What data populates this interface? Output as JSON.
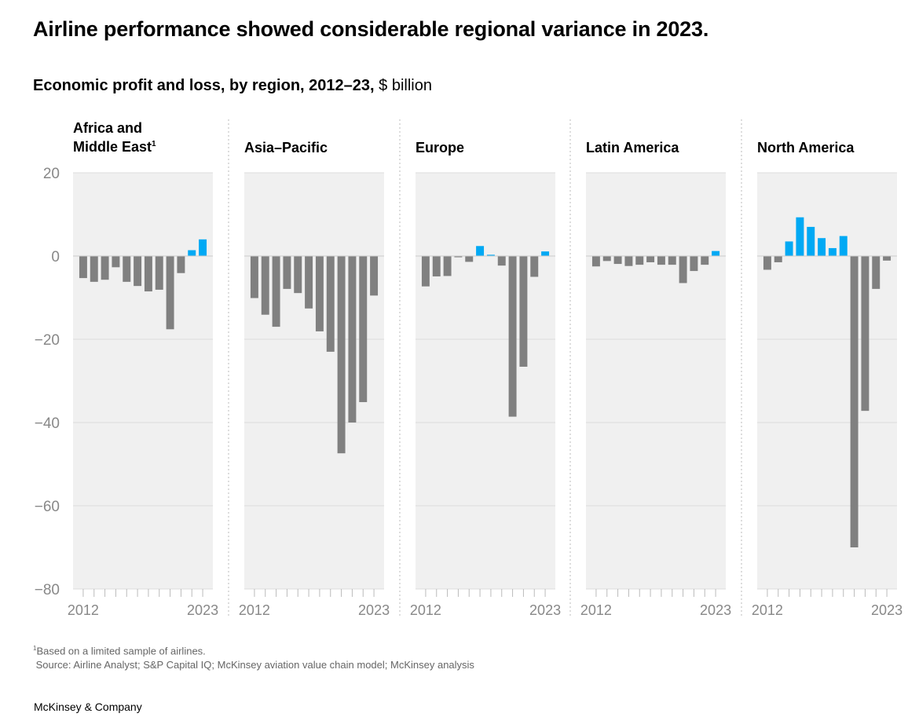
{
  "header": {
    "title": "Airline performance showed considerable regional variance in 2023.",
    "subtitle_bold": "Economic profit and loss, by region, 2012–23,",
    "subtitle_unit": " $ billion"
  },
  "footer": {
    "footnote_mark": "1",
    "footnote": "Based on a limited sample of airlines.",
    "source": "Source: Airline Analyst; S&P Capital IQ; McKinsey aviation value chain model; McKinsey analysis",
    "brand": "McKinsey & Company"
  },
  "colors": {
    "negative": "#808080",
    "positive": "#00A9F4",
    "panel_bg": "#F0F0F0",
    "gridline": "#DCDCDC",
    "axis_text": "#888888"
  },
  "chart_data": {
    "type": "bar",
    "title": "Economic profit and loss, by region, 2012–23, $ billion",
    "xlabel": "",
    "ylabel": "$ billion",
    "ylim": [
      -80,
      20
    ],
    "yticks": [
      20,
      0,
      -20,
      -40,
      -60,
      -80
    ],
    "ytick_labels": [
      "20",
      "0",
      "−20",
      "−40",
      "−60",
      "−80"
    ],
    "grid": true,
    "years": [
      2012,
      2013,
      2014,
      2015,
      2016,
      2017,
      2018,
      2019,
      2020,
      2021,
      2022,
      2023
    ],
    "x_tick_labels": [
      "2012",
      "2023"
    ],
    "panels": [
      {
        "name": "Africa and Middle East",
        "title_lines": [
          "Africa and",
          "Middle East"
        ],
        "superscript": "1",
        "values": [
          -5.3,
          -6.2,
          -5.7,
          -2.7,
          -6.2,
          -7.2,
          -8.5,
          -8.1,
          -17.6,
          -4.1,
          1.4,
          4.0
        ]
      },
      {
        "name": "Asia–Pacific",
        "title_lines": [
          "Asia–Pacific"
        ],
        "superscript": "",
        "values": [
          -10.1,
          -14.1,
          -17.0,
          -7.9,
          -8.9,
          -12.6,
          -18.1,
          -23.0,
          -47.4,
          -40.0,
          -35.1,
          -9.5
        ]
      },
      {
        "name": "Europe",
        "title_lines": [
          "Europe"
        ],
        "superscript": "",
        "values": [
          -7.3,
          -4.9,
          -4.8,
          -0.3,
          -1.4,
          2.4,
          0.3,
          -2.3,
          -38.6,
          -26.6,
          -5.0,
          1.1
        ]
      },
      {
        "name": "Latin America",
        "title_lines": [
          "Latin America"
        ],
        "superscript": "",
        "values": [
          -2.5,
          -1.2,
          -1.9,
          -2.4,
          -2.1,
          -1.5,
          -2.1,
          -2.1,
          -6.5,
          -3.6,
          -2.1,
          1.2
        ]
      },
      {
        "name": "North America",
        "title_lines": [
          "North America"
        ],
        "superscript": "",
        "values": [
          -3.3,
          -1.5,
          3.5,
          9.3,
          7.0,
          4.3,
          1.9,
          4.8,
          -70.0,
          -37.2,
          -7.9,
          -1.1
        ]
      }
    ]
  }
}
